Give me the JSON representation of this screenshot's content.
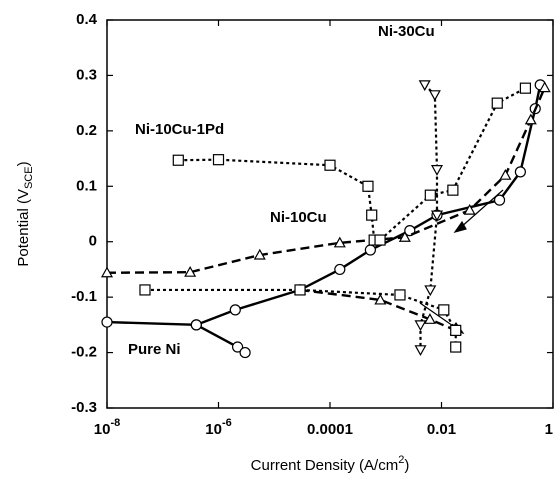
{
  "chart_data": {
    "type": "line",
    "xlabel": {
      "text": "Current Density (A/cm",
      "sup": "2",
      "end": ")"
    },
    "ylabel": {
      "text": "Potential (V",
      "sub": "SCE",
      "end": ")"
    },
    "xscale": "log",
    "xlim": [
      1e-08,
      1
    ],
    "ylim": [
      -0.3,
      0.4
    ],
    "xticks": [
      {
        "value": 1e-08,
        "label": "10",
        "exponent": "-8"
      },
      {
        "value": 1e-06,
        "label": "10",
        "exponent": "-6"
      },
      {
        "value": 0.0001,
        "label": "0.0001"
      },
      {
        "value": 0.01,
        "label": "0.01"
      },
      1
    ],
    "yticks": [
      -0.3,
      -0.2,
      -0.1,
      0,
      0.1,
      0.2,
      0.3,
      0.4
    ],
    "annotations": [
      "Ni-30Cu",
      "Ni-10Cu-1Pd",
      "Ni-10Cu",
      "Pure Ni"
    ],
    "series": [
      {
        "name": "Pure Ni",
        "color": "#000000",
        "line_style": "solid",
        "marker": "circle",
        "x": [
          1e-08,
          4e-07,
          2.2e-06,
          3e-06,
          null,
          4e-07,
          2e-06,
          2.9e-05,
          0.00015,
          0.00053,
          0.0027,
          0.0083,
          0.11,
          0.26,
          0.48,
          0.59
        ],
        "values": [
          -0.145,
          -0.15,
          -0.19,
          -0.2,
          null,
          -0.15,
          -0.123,
          -0.087,
          -0.05,
          -0.015,
          0.02,
          0.048,
          0.075,
          0.126,
          0.24,
          0.283
        ]
      },
      {
        "name": "Ni-10Cu",
        "color": "#000000",
        "line_style": "dashed",
        "marker": "triangle-up",
        "x": [
          1e-08,
          3.1e-07,
          5.5e-06,
          0.00015,
          0.0022,
          0.032,
          0.14,
          0.4,
          0.71,
          null,
          2.9e-05,
          0.0008,
          0.0062,
          0.018
        ],
        "values": [
          -0.056,
          -0.055,
          -0.024,
          -0.002,
          0.008,
          0.057,
          0.12,
          0.22,
          0.278,
          null,
          -0.087,
          -0.105,
          -0.14,
          -0.16
        ]
      },
      {
        "name": "Ni-10Cu-1Pd",
        "color": "#000000",
        "line_style": "dotted",
        "marker": "square",
        "x": [
          1.9e-07,
          1e-06,
          0.0001,
          0.00048,
          0.00056,
          0.00062,
          null,
          4.8e-08,
          2.9e-05,
          0.0018,
          0.011,
          0.018,
          0.018,
          null,
          0.00079,
          0.0063,
          0.016,
          0.1,
          0.32
        ],
        "values": [
          0.147,
          0.148,
          0.138,
          0.1,
          0.048,
          0.003,
          null,
          -0.087,
          -0.087,
          -0.096,
          -0.123,
          -0.16,
          -0.19,
          null,
          0.003,
          0.084,
          0.093,
          0.25,
          0.277
        ]
      },
      {
        "name": "Ni-30Cu",
        "color": "#000000",
        "line_style": "dotted",
        "marker": "triangle-down",
        "x": [
          0.005,
          0.0076,
          0.0083,
          0.0083,
          0.0063,
          0.0042,
          0.0042
        ],
        "values": [
          0.283,
          0.265,
          0.13,
          0.048,
          -0.087,
          -0.15,
          -0.195
        ]
      }
    ]
  }
}
